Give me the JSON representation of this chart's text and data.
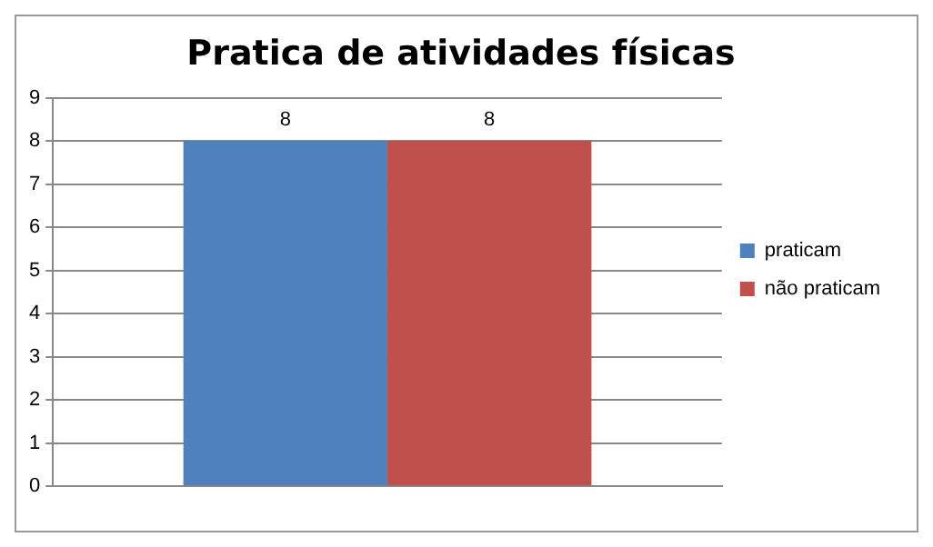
{
  "chart_data": {
    "type": "bar",
    "title": "Pratica de atividades físicas",
    "categories": [
      null
    ],
    "series": [
      {
        "name": "praticam",
        "color": "#4f81bd",
        "values": [
          8
        ]
      },
      {
        "name": "não praticam",
        "color": "#c0504d",
        "values": [
          8
        ]
      }
    ],
    "ylim": [
      0,
      9
    ],
    "yticks": [
      0,
      1,
      2,
      3,
      4,
      5,
      6,
      7,
      8,
      9
    ],
    "grid": "y",
    "legend": "right",
    "data_labels": true
  }
}
